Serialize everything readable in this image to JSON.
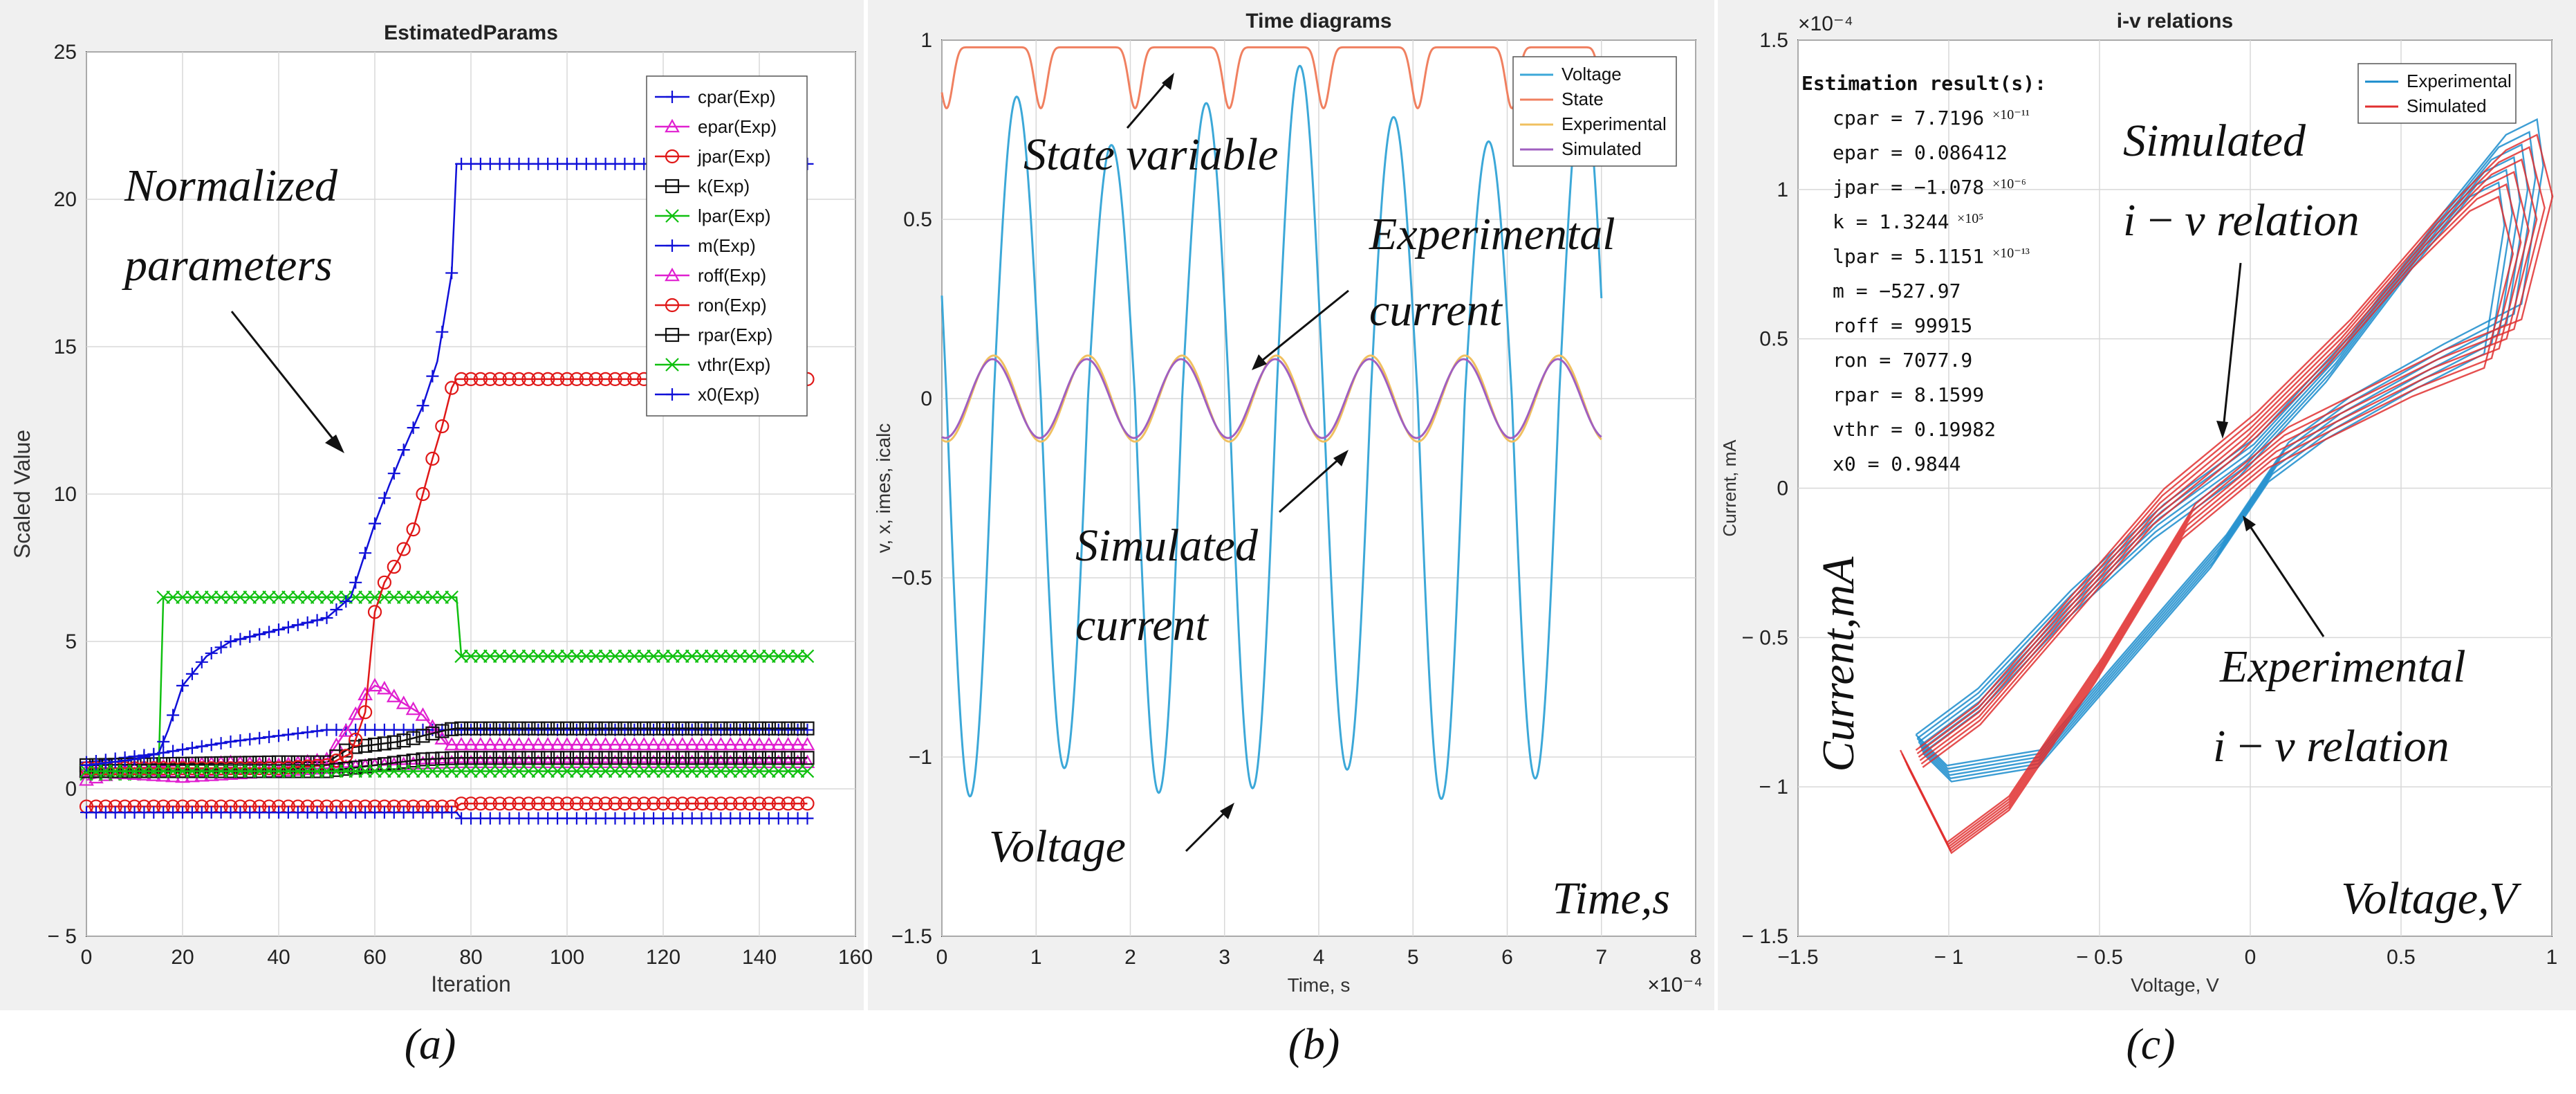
{
  "chart_data": [
    {
      "type": "line",
      "title": "EstimatedParams",
      "xlabel": "Iteration",
      "ylabel": "Scaled Value",
      "xlim": [
        0,
        160
      ],
      "ylim": [
        -5,
        25
      ],
      "xticks": [
        0,
        20,
        40,
        60,
        80,
        100,
        120,
        140,
        160
      ],
      "yticks": [
        -5,
        0,
        5,
        10,
        15,
        20,
        25
      ],
      "xtick_labels": [
        "0",
        "20",
        "40",
        "60",
        "80",
        "100",
        "120",
        "140",
        "160"
      ],
      "ytick_labels": [
        "− 5",
        "0",
        "5",
        "10",
        "15",
        "20",
        "25"
      ],
      "legend_position": "top-right",
      "caption": "(a)",
      "annotations": [
        {
          "text": "Normalized"
        },
        {
          "text": "parameters"
        }
      ],
      "series": [
        {
          "name": "cpar(Exp)",
          "marker": "+",
          "color": "#1010d8",
          "x": [
            0,
            15,
            30,
            50,
            77,
            100,
            150
          ],
          "y": [
            0.9,
            1.2,
            1.6,
            2.0,
            2.0,
            2.0,
            2.0
          ]
        },
        {
          "name": "epar(Exp)",
          "marker": "triangle",
          "color": "#e020d0",
          "x": [
            0,
            10,
            20,
            30,
            40,
            50,
            55,
            58,
            60,
            62,
            65,
            70,
            75,
            77,
            100,
            150
          ],
          "y": [
            0.3,
            0.7,
            0.8,
            0.9,
            0.8,
            1.0,
            2.2,
            3.2,
            3.5,
            3.4,
            3.0,
            2.5,
            1.5,
            1.5,
            1.5,
            1.5
          ]
        },
        {
          "name": "jpar(Exp)",
          "marker": "circle",
          "color": "#e01818",
          "x": [
            0,
            20,
            40,
            60,
            77,
            78,
            100,
            150
          ],
          "y": [
            -0.6,
            -0.6,
            -0.6,
            -0.6,
            -0.6,
            -0.5,
            -0.5,
            -0.5
          ]
        },
        {
          "name": "k(Exp)",
          "marker": "square",
          "color": "#111111",
          "x": [
            0,
            20,
            40,
            50,
            55,
            60,
            65,
            70,
            75,
            77,
            100,
            150
          ],
          "y": [
            0.8,
            0.85,
            0.9,
            0.9,
            1.4,
            1.5,
            1.6,
            1.8,
            2.0,
            2.05,
            2.05,
            2.05
          ]
        },
        {
          "name": "lpar(Exp)",
          "marker": "x",
          "color": "#10c010",
          "x": [
            0,
            15,
            16,
            77,
            78,
            100,
            150
          ],
          "y": [
            0.5,
            0.5,
            6.5,
            6.5,
            4.5,
            4.5,
            4.5
          ]
        },
        {
          "name": "m(Exp)",
          "marker": "+",
          "color": "#1010d8",
          "x": [
            0,
            20,
            40,
            60,
            77,
            78,
            100,
            150
          ],
          "y": [
            -0.8,
            -0.8,
            -0.8,
            -0.8,
            -0.8,
            -1.0,
            -1.0,
            -1.0
          ]
        },
        {
          "name": "roff(Exp)",
          "marker": "triangle",
          "color": "#e020d0",
          "x": [
            0,
            10,
            20,
            40,
            60,
            77,
            100,
            150
          ],
          "y": [
            0.6,
            0.5,
            0.4,
            0.6,
            0.8,
            0.9,
            0.9,
            0.9
          ]
        },
        {
          "name": "ron(Exp)",
          "marker": "circle",
          "color": "#e01818",
          "x": [
            0,
            20,
            40,
            50,
            55,
            58,
            60,
            62,
            65,
            68,
            70,
            72,
            74,
            76,
            77,
            78,
            100,
            150
          ],
          "y": [
            0.7,
            0.7,
            0.7,
            0.8,
            1.2,
            2.6,
            6.0,
            7.0,
            7.8,
            8.8,
            10.0,
            11.2,
            12.3,
            13.6,
            13.9,
            13.9,
            13.9,
            13.9
          ]
        },
        {
          "name": "rpar(Exp)",
          "marker": "square",
          "color": "#111111",
          "x": [
            0,
            20,
            40,
            50,
            60,
            70,
            77,
            100,
            150
          ],
          "y": [
            0.6,
            0.6,
            0.6,
            0.6,
            0.8,
            1.0,
            1.05,
            1.05,
            1.05
          ]
        },
        {
          "name": "vthr(Exp)",
          "marker": "x",
          "color": "#10c010",
          "x": [
            0,
            20,
            40,
            60,
            77,
            100,
            150
          ],
          "y": [
            0.6,
            0.6,
            0.6,
            0.6,
            0.6,
            0.6,
            0.6
          ]
        },
        {
          "name": "x0(Exp)",
          "marker": "+",
          "color": "#1010d8",
          "x": [
            0,
            5,
            10,
            15,
            17,
            20,
            25,
            30,
            35,
            40,
            45,
            50,
            55,
            57,
            60,
            63,
            66,
            70,
            73,
            76,
            77,
            78,
            100,
            150
          ],
          "y": [
            0.8,
            0.9,
            1.0,
            1.2,
            2.0,
            3.5,
            4.5,
            5.0,
            5.2,
            5.4,
            5.6,
            5.8,
            6.5,
            7.5,
            9.0,
            10.3,
            11.5,
            13.0,
            14.5,
            17.5,
            21.2,
            21.2,
            21.2,
            21.2
          ]
        }
      ]
    },
    {
      "type": "line",
      "title": "Time diagrams",
      "xlabel": "Time, s",
      "ylabel": "v, x, imes, icalc",
      "x_exponent": "×10⁻⁴",
      "xlim": [
        0,
        8
      ],
      "ylim": [
        -1.5,
        1
      ],
      "xticks": [
        0,
        1,
        2,
        3,
        4,
        5,
        6,
        7,
        8
      ],
      "yticks": [
        -1.5,
        -1,
        -0.5,
        0,
        0.5,
        1
      ],
      "xtick_labels": [
        "0",
        "1",
        "2",
        "3",
        "4",
        "5",
        "6",
        "7",
        "8"
      ],
      "ytick_labels": [
        "−1.5",
        "−1",
        "−0.5",
        "0",
        "0.5",
        "1"
      ],
      "legend_position": "top-right",
      "caption": "(b)",
      "axis_note": "Time,s",
      "annotations": [
        {
          "text": "State variable"
        },
        {
          "text": "Experimental"
        },
        {
          "text": "current"
        },
        {
          "text": "Simulated"
        },
        {
          "text": "current"
        },
        {
          "text": "Voltage"
        }
      ],
      "series": [
        {
          "name": "Voltage",
          "color": "#3ca8d8",
          "kind": "sine",
          "amplitude_peak_max": 0.93,
          "amplitude_trough_min": -1.12,
          "period": 1.0,
          "x_range": [
            0,
            7
          ]
        },
        {
          "name": "State",
          "color": "#f08060",
          "kind": "state",
          "top": 0.98,
          "dip_min": 0.81,
          "x_range": [
            0,
            7
          ]
        },
        {
          "name": "Experimental",
          "color": "#f0c060",
          "kind": "sine",
          "amplitude": 0.12,
          "period": 1.0,
          "x_range": [
            0,
            7
          ]
        },
        {
          "name": "Simulated",
          "color": "#a060c0",
          "kind": "sine",
          "amplitude": 0.11,
          "period": 1.0,
          "x_range": [
            0,
            7
          ]
        }
      ]
    },
    {
      "type": "line",
      "title": "i-v relations",
      "xlabel": "Voltage, V",
      "ylabel": "Current, mA",
      "y_exponent": "×10⁻⁴",
      "xlim": [
        -1.5,
        1
      ],
      "ylim": [
        -1.5,
        1.5
      ],
      "xticks": [
        -1.5,
        -1,
        -0.5,
        0,
        0.5,
        1
      ],
      "yticks": [
        -1.5,
        -1,
        -0.5,
        0,
        0.5,
        1,
        1.5
      ],
      "xtick_labels": [
        "−1.5",
        "− 1",
        "− 0.5",
        "0",
        "0.5",
        "1"
      ],
      "ytick_labels": [
        "− 1.5",
        "− 1",
        "− 0.5",
        "0",
        "0.5",
        "1",
        "1.5"
      ],
      "legend_position": "top-right",
      "caption": "(c)",
      "axis_notes": [
        "Current,mA",
        "Voltage,V"
      ],
      "annotations": [
        {
          "text": "Simulated"
        },
        {
          "text": "i − v relation"
        },
        {
          "text": "Experimental"
        },
        {
          "text": "i − v relation"
        }
      ],
      "estimation": {
        "header": "Estimation result(s):",
        "rows": [
          {
            "text": "cpar = 7.7196",
            "sup": "×10⁻¹¹"
          },
          {
            "text": "epar = 0.086412",
            "sup": ""
          },
          {
            "text": "jpar = −1.078",
            "sup": "×10⁻⁶"
          },
          {
            "text": "k = 1.3244",
            "sup": "×10⁵"
          },
          {
            "text": "lpar = 5.1151",
            "sup": "×10⁻¹³"
          },
          {
            "text": "m = −527.97",
            "sup": ""
          },
          {
            "text": "roff = 99915",
            "sup": ""
          },
          {
            "text": "ron = 7077.9",
            "sup": ""
          },
          {
            "text": "rpar = 8.1599",
            "sup": ""
          },
          {
            "text": "vthr = 0.19982",
            "sup": ""
          },
          {
            "text": "x0 = 0.9844",
            "sup": ""
          }
        ]
      },
      "series": [
        {
          "name": "Experimental",
          "color": "#1a8ccc",
          "upper": {
            "x": [
              -1.1,
              -0.9,
              -0.6,
              -0.3,
              0,
              0.3,
              0.6,
              0.8,
              0.9,
              0.92
            ],
            "y": [
              -0.85,
              -0.7,
              -0.38,
              -0.1,
              0.12,
              0.45,
              0.85,
              1.1,
              1.15,
              1.0
            ]
          },
          "lower": {
            "x": [
              0.92,
              0.85,
              0.6,
              0.3,
              0.1,
              -0.1,
              -0.4,
              -0.7,
              -1.0,
              -1.1
            ],
            "y": [
              1.0,
              0.55,
              0.42,
              0.25,
              0.1,
              -0.2,
              -0.55,
              -0.9,
              -0.95,
              -0.85
            ]
          }
        },
        {
          "name": "Simulated",
          "color": "#e03030",
          "upper": {
            "x": [
              -1.1,
              -0.9,
              -0.6,
              -0.3,
              0,
              0.3,
              0.6,
              0.8,
              0.9,
              0.95
            ],
            "y": [
              -0.9,
              -0.75,
              -0.4,
              -0.05,
              0.2,
              0.5,
              0.85,
              1.05,
              1.1,
              0.9
            ]
          },
          "lower": {
            "x": [
              0.95,
              0.85,
              0.6,
              0.3,
              0.1,
              -0.2,
              -0.5,
              -0.8,
              -1.0,
              -1.15
            ],
            "y": [
              0.9,
              0.5,
              0.4,
              0.25,
              0.15,
              -0.1,
              -0.6,
              -1.05,
              -1.2,
              -0.9
            ]
          }
        }
      ]
    }
  ]
}
